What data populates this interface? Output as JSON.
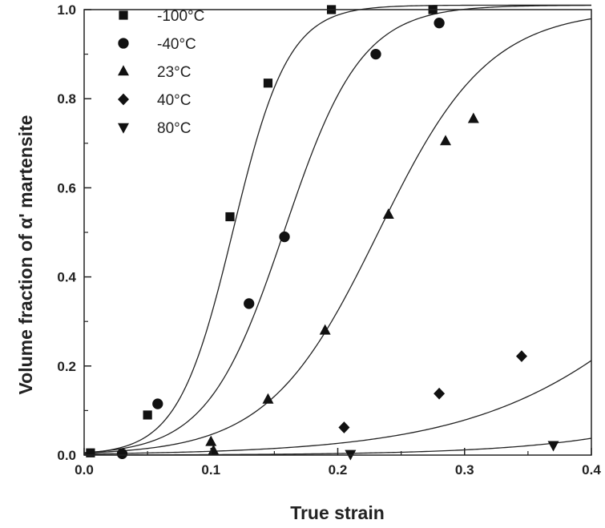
{
  "chart_data": {
    "type": "scatter",
    "xlabel": "True strain",
    "ylabel": "Volume fraction of α' martensite",
    "xlim": [
      0.0,
      0.4
    ],
    "ylim": [
      0.0,
      1.0
    ],
    "xticks": [
      "0.0",
      "0.1",
      "0.2",
      "0.3",
      "0.4"
    ],
    "yticks": [
      "0.0",
      "0.2",
      "0.4",
      "0.6",
      "0.8",
      "1.0"
    ],
    "legend_position": "top-left",
    "grid": false,
    "series": [
      {
        "name": "-100°C",
        "marker": "square",
        "points": [
          [
            0.005,
            0.005
          ],
          [
            0.05,
            0.09
          ],
          [
            0.115,
            0.535
          ],
          [
            0.145,
            0.835
          ],
          [
            0.195,
            1.0
          ],
          [
            0.275,
            1.0
          ]
        ],
        "fit": {
          "a": 1.01,
          "c": 0.1175,
          "k": 46
        }
      },
      {
        "name": "-40°C",
        "marker": "circle",
        "points": [
          [
            0.03,
            0.003
          ],
          [
            0.058,
            0.115
          ],
          [
            0.13,
            0.34
          ],
          [
            0.158,
            0.49
          ],
          [
            0.23,
            0.9
          ],
          [
            0.28,
            0.97
          ]
        ],
        "fit": {
          "a": 1.01,
          "c": 0.158,
          "k": 33
        }
      },
      {
        "name": "23°C",
        "marker": "triangle-up",
        "points": [
          [
            0.1,
            0.03
          ],
          [
            0.102,
            0.01
          ],
          [
            0.145,
            0.125
          ],
          [
            0.19,
            0.28
          ],
          [
            0.24,
            0.54
          ],
          [
            0.285,
            0.705
          ],
          [
            0.307,
            0.755
          ]
        ],
        "fit": {
          "a": 1.0,
          "c": 0.232,
          "k": 23
        }
      },
      {
        "name": "40°C",
        "marker": "diamond",
        "points": [
          [
            0.205,
            0.062
          ],
          [
            0.28,
            0.138
          ],
          [
            0.345,
            0.222
          ]
        ],
        "fit": {
          "a": 1.0,
          "c": 0.514,
          "k": 11.5
        }
      },
      {
        "name": "80°C",
        "marker": "triangle-down",
        "points": [
          [
            0.21,
            0.002
          ],
          [
            0.37,
            0.022
          ]
        ],
        "fit": {
          "a": 1.0,
          "c": 0.67,
          "k": 12
        }
      }
    ]
  }
}
